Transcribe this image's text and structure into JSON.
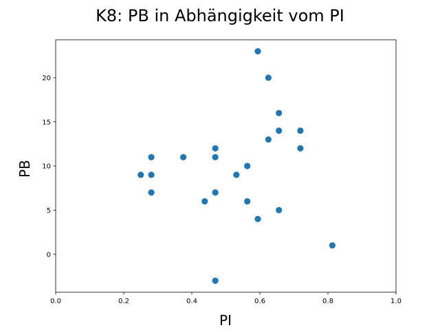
{
  "chart_data": {
    "type": "scatter",
    "title": "K8: PB in Abhängigkeit vom PI",
    "xlabel": "PI",
    "ylabel": "PB",
    "xlim": [
      0.0,
      1.0
    ],
    "ylim": [
      -4.3,
      24.3
    ],
    "x_ticks": [
      0.0,
      0.2,
      0.4,
      0.6,
      0.8,
      1.0
    ],
    "x_tick_labels": [
      "0.0",
      "0.2",
      "0.4",
      "0.6",
      "0.8",
      "1.0"
    ],
    "y_ticks": [
      0,
      5,
      10,
      15,
      20
    ],
    "y_tick_labels": [
      "0",
      "5",
      "10",
      "15",
      "20"
    ],
    "grid": false,
    "marker_color": "#1f77b4",
    "points": [
      {
        "x": 0.594,
        "y": 23
      },
      {
        "x": 0.625,
        "y": 20
      },
      {
        "x": 0.656,
        "y": 16
      },
      {
        "x": 0.656,
        "y": 14
      },
      {
        "x": 0.719,
        "y": 14
      },
      {
        "x": 0.625,
        "y": 13
      },
      {
        "x": 0.719,
        "y": 12
      },
      {
        "x": 0.469,
        "y": 12
      },
      {
        "x": 0.281,
        "y": 11
      },
      {
        "x": 0.375,
        "y": 11
      },
      {
        "x": 0.469,
        "y": 11
      },
      {
        "x": 0.563,
        "y": 10
      },
      {
        "x": 0.25,
        "y": 9
      },
      {
        "x": 0.281,
        "y": 9
      },
      {
        "x": 0.531,
        "y": 9
      },
      {
        "x": 0.281,
        "y": 7
      },
      {
        "x": 0.469,
        "y": 7
      },
      {
        "x": 0.438,
        "y": 6
      },
      {
        "x": 0.563,
        "y": 6
      },
      {
        "x": 0.656,
        "y": 5
      },
      {
        "x": 0.594,
        "y": 4
      },
      {
        "x": 0.813,
        "y": 1
      },
      {
        "x": 0.469,
        "y": -3
      }
    ]
  }
}
